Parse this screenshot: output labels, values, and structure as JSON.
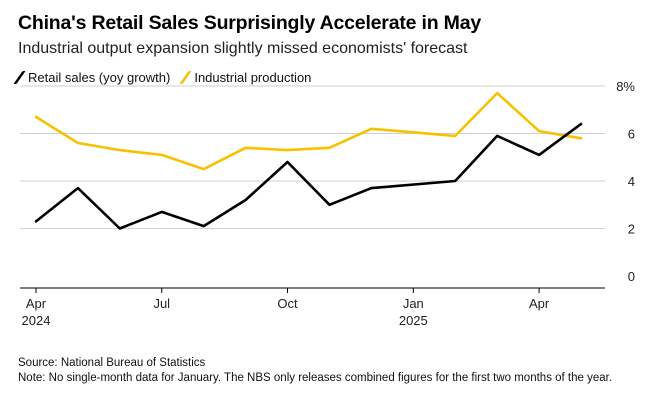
{
  "title": "China's Retail Sales Surprisingly Accelerate in May",
  "subtitle": "Industrial output expansion slightly missed economists' forecast",
  "source": "Source: National Bureau of Statistics",
  "note": "Note: No single-month data for January. The NBS only releases combined figures for the first two months of the year.",
  "colors": {
    "retail": "#000000",
    "industrial": "#f5c100",
    "grid": "#cfcfcf",
    "axis": "#000000"
  },
  "chart_data": {
    "type": "line",
    "title": "China's Retail Sales Surprisingly Accelerate in May",
    "subtitle": "Industrial output expansion slightly missed economists' forecast",
    "legend_position": "top-left",
    "grid": true,
    "y_axis_side": "right",
    "ylim": [
      0,
      8
    ],
    "yticks": [
      {
        "value": 0,
        "label": "0"
      },
      {
        "value": 2,
        "label": "2"
      },
      {
        "value": 4,
        "label": "4"
      },
      {
        "value": 6,
        "label": "6"
      },
      {
        "value": 8,
        "label": "8%"
      }
    ],
    "x_index_range": [
      0,
      13
    ],
    "xticks": [
      {
        "index": 0,
        "label": "Apr",
        "year": "2024"
      },
      {
        "index": 3,
        "label": "Jul",
        "year": ""
      },
      {
        "index": 6,
        "label": "Oct",
        "year": ""
      },
      {
        "index": 9,
        "label": "Jan",
        "year": "2025"
      },
      {
        "index": 12,
        "label": "Apr",
        "year": ""
      }
    ],
    "x": [
      "2024-04",
      "2024-05",
      "2024-06",
      "2024-07",
      "2024-08",
      "2024-09",
      "2024-10",
      "2024-11",
      "2024-12",
      "2025-02",
      "2025-03",
      "2025-04",
      "2025-05"
    ],
    "x_index": [
      0,
      1,
      2,
      3,
      4,
      5,
      6,
      7,
      8,
      10,
      11,
      12,
      13
    ],
    "series": [
      {
        "name": "Retail sales (yoy growth)",
        "color": "#000000",
        "values": [
          2.3,
          3.7,
          2.0,
          2.7,
          2.1,
          3.2,
          4.8,
          3.0,
          3.7,
          4.0,
          5.9,
          5.1,
          6.4
        ]
      },
      {
        "name": "Industrial production",
        "color": "#f5c100",
        "values": [
          6.7,
          5.6,
          5.3,
          5.1,
          4.5,
          5.4,
          5.3,
          5.4,
          6.2,
          5.9,
          7.7,
          6.1,
          5.8
        ]
      }
    ]
  }
}
